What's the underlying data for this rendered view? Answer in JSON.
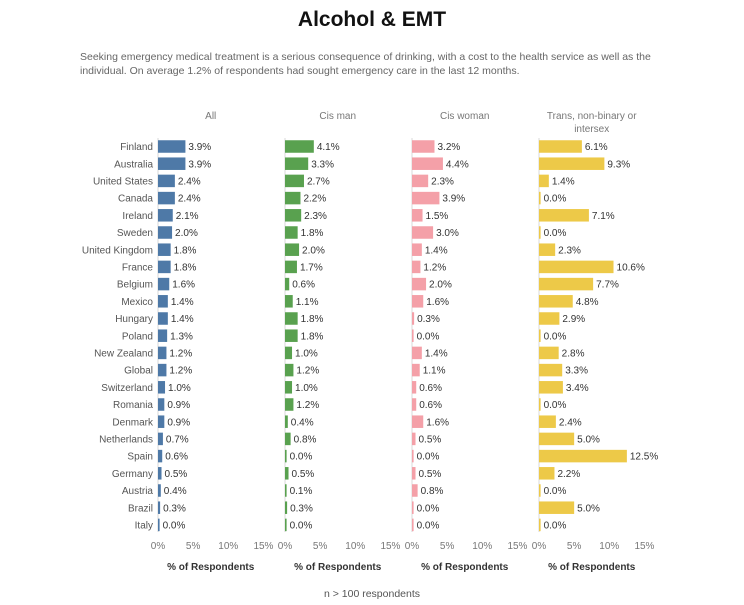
{
  "title": "Alcohol & EMT",
  "subtitle": "Seeking emergency medical treatment is a serious consequence of drinking, with a cost to the health service as well as the individual. On average 1.2% of respondents had sought emergency care in the last 12 months.",
  "footnote": "n > 100 respondents",
  "chart_data": {
    "type": "bar",
    "orientation": "horizontal",
    "categories": [
      "Finland",
      "Australia",
      "United States",
      "Canada",
      "Ireland",
      "Sweden",
      "United Kingdom",
      "France",
      "Belgium",
      "Mexico",
      "Hungary",
      "Poland",
      "New Zealand",
      "Global",
      "Switzerland",
      "Romania",
      "Denmark",
      "Netherlands",
      "Spain",
      "Germany",
      "Austria",
      "Brazil",
      "Italy"
    ],
    "series": [
      {
        "name": "All",
        "color": "#4e79a7",
        "values": [
          3.9,
          3.9,
          2.4,
          2.4,
          2.1,
          2.0,
          1.8,
          1.8,
          1.6,
          1.4,
          1.4,
          1.3,
          1.2,
          1.2,
          1.0,
          0.9,
          0.9,
          0.7,
          0.6,
          0.5,
          0.4,
          0.3,
          0.0
        ]
      },
      {
        "name": "Cis man",
        "color": "#59a14f",
        "values": [
          4.1,
          3.3,
          2.7,
          2.2,
          2.3,
          1.8,
          2.0,
          1.7,
          0.6,
          1.1,
          1.8,
          1.8,
          1.0,
          1.2,
          1.0,
          1.2,
          0.4,
          0.8,
          0.0,
          0.5,
          0.1,
          0.3,
          0.0
        ]
      },
      {
        "name": "Cis woman",
        "color": "#f4a0a8",
        "values": [
          3.2,
          4.4,
          2.3,
          3.9,
          1.5,
          3.0,
          1.4,
          1.2,
          2.0,
          1.6,
          0.3,
          0.0,
          1.4,
          1.1,
          0.6,
          0.6,
          1.6,
          0.5,
          0.0,
          0.5,
          0.8,
          0.0,
          0.0
        ]
      },
      {
        "name": "Trans, non-binary or intersex",
        "color": "#edc948",
        "values": [
          6.1,
          9.3,
          1.4,
          0.0,
          7.1,
          0.0,
          2.3,
          10.6,
          7.7,
          4.8,
          2.9,
          0.0,
          2.8,
          3.3,
          3.4,
          0.0,
          2.4,
          5.0,
          12.5,
          2.2,
          0.0,
          5.0,
          0.0
        ]
      }
    ],
    "xlabel": "% of Respondents",
    "xlim": [
      0,
      15
    ],
    "xticks": [
      "0%",
      "5%",
      "10%",
      "15%"
    ],
    "value_format": "percent_1dp"
  }
}
